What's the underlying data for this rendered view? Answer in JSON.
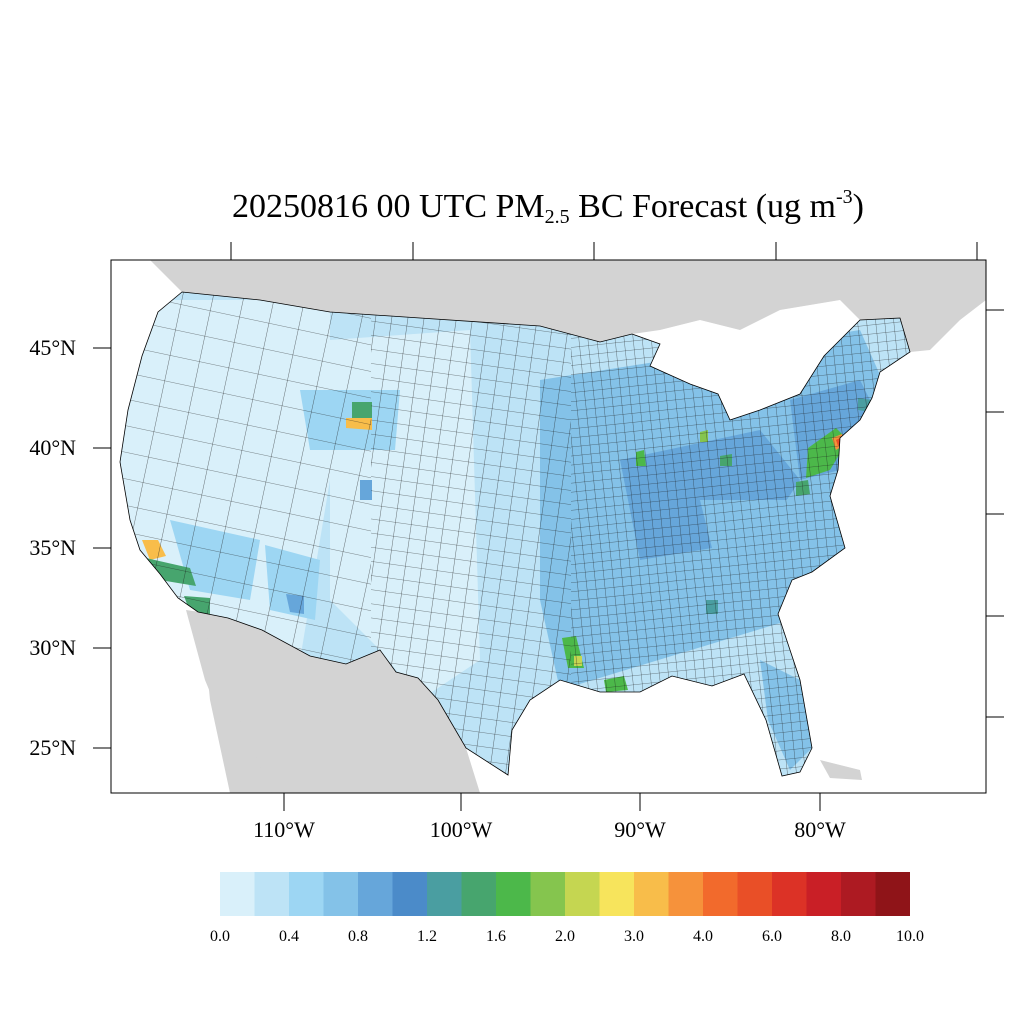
{
  "title": {
    "prefix": "20250816 00 UTC PM",
    "subscript": "2.5",
    "middle": " BC Forecast (ug m",
    "superscript": "-3",
    "suffix": ")"
  },
  "axes": {
    "lat_labels": [
      "45°N",
      "40°N",
      "35°N",
      "30°N",
      "25°N"
    ],
    "lon_labels": [
      "110°W",
      "100°W",
      "90°W",
      "80°W"
    ]
  },
  "colorbar": {
    "colors": [
      "#d9f0fa",
      "#bde3f6",
      "#9dd6f3",
      "#84c2e8",
      "#66a6da",
      "#4b8bc9",
      "#4a9ea1",
      "#47a56e",
      "#4cb84a",
      "#85c54e",
      "#c5d651",
      "#f7e45c",
      "#f8bd4a",
      "#f6923b",
      "#f26a2c",
      "#e94f27",
      "#dc3226",
      "#c91f26",
      "#ad1a22",
      "#8f1418"
    ],
    "labels": [
      "0.0",
      "0.4",
      "0.8",
      "1.2",
      "1.6",
      "2.0",
      "3.0",
      "4.0",
      "6.0",
      "8.0",
      "10.0"
    ]
  },
  "colors": {
    "land_outside": "#d3d3d3",
    "water": "#ffffff",
    "base_fill": "#bde3f6"
  }
}
